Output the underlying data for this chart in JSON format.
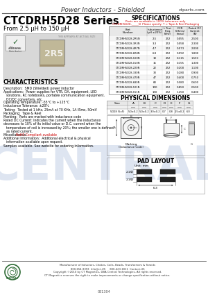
{
  "title_header": "Power Inductors - Shielded",
  "website": "ctparts.com",
  "series_title": "CTCDRH5D28 Series",
  "series_subtitle": "From 2.5 μH to 150 μH",
  "bg_color": "#ffffff",
  "spec_title": "SPECIFICATIONS",
  "spec_note1": "Parts are available in 100% tolerance only",
  "spec_note2": "CTCDRH5D28-_____N  Please specify: T = Tape & Reel Packaging",
  "spec_col_headers": [
    "Part\nNumber",
    "Inductance\n(μH ±20%)",
    "L Test\nFreq.\n(kHz)",
    "DCR\n(Ohms)\n(max)",
    "Rated DC\nCurrent\n(A)"
  ],
  "spec_data": [
    [
      "CTCDRH5D28-2R5N",
      "2.5",
      "252",
      "0.055",
      "2.500"
    ],
    [
      "CTCDRH5D28-3R3N",
      "3.3",
      "252",
      "0.058",
      "2.300"
    ],
    [
      "CTCDRH5D28-4R7N",
      "4.7",
      "252",
      "0.073",
      "2.000"
    ],
    [
      "CTCDRH5D28-6R8N",
      "6.8",
      "252",
      "0.092",
      "1.800"
    ],
    [
      "CTCDRH5D28-100N",
      "10",
      "252",
      "0.115",
      "1.550"
    ],
    [
      "CTCDRH5D28-150N",
      "15",
      "252",
      "0.155",
      "1.300"
    ],
    [
      "CTCDRH5D28-220N",
      "22",
      "252",
      "0.200",
      "1.100"
    ],
    [
      "CTCDRH5D28-330N",
      "33",
      "252",
      "0.280",
      "0.900"
    ],
    [
      "CTCDRH5D28-470N",
      "47",
      "252",
      "0.400",
      "0.750"
    ],
    [
      "CTCDRH5D28-680N",
      "68",
      "252",
      "0.580",
      "0.600"
    ],
    [
      "CTCDRH5D28-101N",
      "100",
      "252",
      "0.850",
      "0.500"
    ],
    [
      "CTCDRH5D28-151N",
      "150",
      "252",
      "1.250",
      "0.400"
    ]
  ],
  "char_title": "CHARACTERISTICS",
  "char_lines": [
    [
      "Description:  SMD (Shielded) power inductor",
      false
    ],
    [
      "Applications:  Power supplies for VTR, DA, equipment, LED",
      false
    ],
    [
      "solutions, RC notebooks, portable communication equipment,",
      false
    ],
    [
      "DC/DC converters, etc.",
      false
    ],
    [
      "Operating Temperature: -55°C to +125°C",
      false
    ],
    [
      "Inductance Tolerance: ±20%",
      false
    ],
    [
      "Testing:  Tested at 1 kHz, 25mA at 70 KHz, 1A IRms, 50mV",
      false
    ],
    [
      "Packaging:  Tape & Reel",
      false
    ],
    [
      "Marking:  Parts are marked with inductance code",
      false
    ],
    [
      "Rated DC Current: Indicates the current when the inductance",
      false
    ],
    [
      "decreases to 10% of its initial value or D.C. current when the",
      false
    ],
    [
      "temperature of coil is increased by 20%; the smaller one is defined",
      false
    ],
    [
      "as rated current.",
      false
    ],
    [
      "Miscellaneous:  ",
      false
    ],
    [
      "Additional Information:  Additional electrical & physical",
      false
    ],
    [
      "information available upon request.",
      false
    ],
    [
      "Samples available. See website for ordering information.",
      false
    ]
  ],
  "rohs_inline": "RoHS Compliant available",
  "phys_dim_title": "PHYSICAL DIMENSIONS",
  "phys_dim_cols": [
    "Size",
    "A",
    "B",
    "C",
    "D",
    "E",
    "F",
    "G"
  ],
  "phys_dim_unit_row": [
    "",
    "mm",
    "mm",
    "mm",
    "mm",
    "mm",
    "mm",
    "mm"
  ],
  "phys_dim_data": [
    "5D28 (5x5)",
    "5.0±0.2",
    "5.0±0.2",
    "3.0±0.2",
    "0.7",
    "0.8",
    "2.5±0.2",
    "6.0"
  ],
  "phys_dim_note": "0.4±0.2",
  "pad_layout_title": "PAD LAYOUT",
  "pad_unit": "Unit: mm",
  "pad_dim_a": "2.15",
  "pad_dim_b": "2.15",
  "pad_dim_total": "6.3",
  "footer_text1": "Manufacturer of Inductors, Chokes, Coils, Beads, Transformers & Toroids",
  "footer_text2": "800-654-9393  Info@ct-US     800-423-1811  Contact-US",
  "footer_text3": "Copyright ©2010 by CT Magnetics, DBA Central Technologies, All rights reserved.",
  "footer_text4": "CT Magnetics reserves the right to make improvements or change specification without notice.",
  "page_num": "031304",
  "watermark": "CENTRAL",
  "watermark_color": "#c8d4e8"
}
